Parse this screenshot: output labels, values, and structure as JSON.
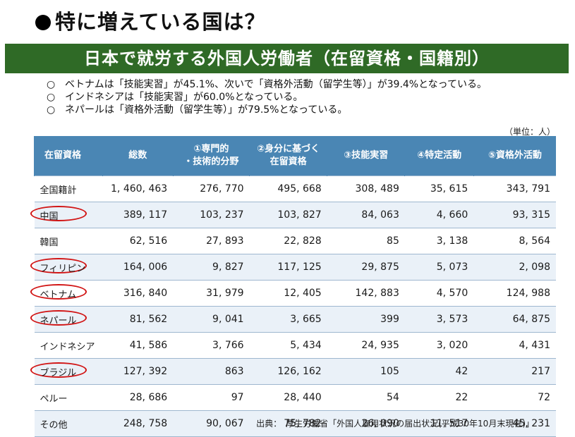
{
  "heading": "特に増えている国は？",
  "banner_title": "日本で就労する外国人労働者（在留資格・国籍別）",
  "notes": [
    {
      "mark": "○",
      "text": "ベトナムは「技能実習」が45.1%、次いで「資格外活動（留学生等）」が39.4%となっている。"
    },
    {
      "mark": "○",
      "text": "インドネシアは「技能実習」が60.0%となっている。"
    },
    {
      "mark": "○",
      "text": "ネパールは「資格外活動（留学生等）」が79.5%となっている。"
    }
  ],
  "unit": "（単位：人）",
  "table": {
    "headers": [
      "在留資格",
      "総数",
      "①専門的\n・技術的分野",
      "②身分に基づく\n在留資格",
      "③技能実習",
      "④特定活動",
      "⑤資格外活動"
    ],
    "rows": [
      {
        "label": "全国籍計",
        "circled": false,
        "values": [
          "1, 460, 463",
          "276, 770",
          "495, 668",
          "308, 489",
          "35, 615",
          "343, 791"
        ]
      },
      {
        "label": "中国",
        "circled": true,
        "values": [
          "389, 117",
          "103, 237",
          "103, 827",
          "84, 063",
          "4, 660",
          "93, 315"
        ]
      },
      {
        "label": "韓国",
        "circled": false,
        "values": [
          "62, 516",
          "27, 893",
          "22, 828",
          "85",
          "3, 138",
          "8, 564"
        ]
      },
      {
        "label": "フィリピン",
        "circled": true,
        "values": [
          "164, 006",
          "9, 827",
          "117, 125",
          "29, 875",
          "5, 073",
          "2, 098"
        ]
      },
      {
        "label": "ベトナム",
        "circled": true,
        "values": [
          "316, 840",
          "31, 979",
          "12, 405",
          "142, 883",
          "4, 570",
          "124, 988"
        ]
      },
      {
        "label": "ネパール",
        "circled": true,
        "values": [
          "81, 562",
          "9, 041",
          "3, 665",
          "399",
          "3, 573",
          "64, 875"
        ]
      },
      {
        "label": "インドネシア",
        "circled": false,
        "values": [
          "41, 586",
          "3, 766",
          "5, 434",
          "24, 935",
          "3, 020",
          "4, 431"
        ]
      },
      {
        "label": "ブラジル",
        "circled": true,
        "values": [
          "127, 392",
          "863",
          "126, 162",
          "105",
          "42",
          "217"
        ]
      },
      {
        "label": "ペルー",
        "circled": false,
        "values": [
          "28, 686",
          "97",
          "28, 440",
          "54",
          "22",
          "72"
        ]
      },
      {
        "label": "その他",
        "circled": false,
        "values": [
          "248, 758",
          "90, 067",
          "75, 782",
          "26, 090",
          "11, 517",
          "45, 231"
        ]
      }
    ]
  },
  "source": "出典：　厚生労働省「外国人雇用状況の届出状況(平成30年10月末現在)」",
  "colors": {
    "banner": "#2f6a26",
    "header": "#4a86b4",
    "circle": "#d11414"
  }
}
